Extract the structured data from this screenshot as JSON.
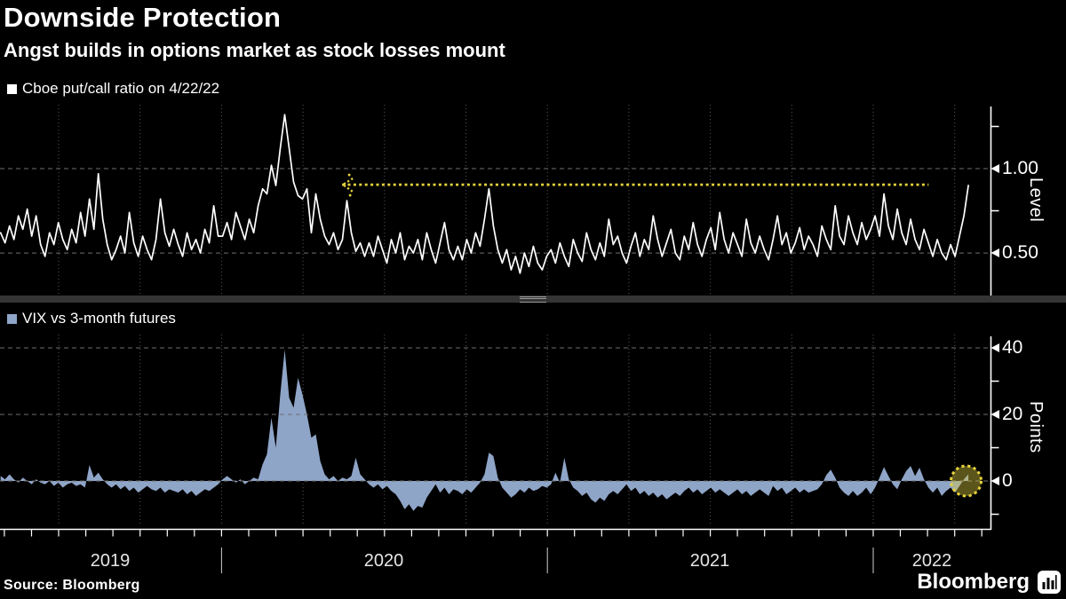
{
  "header": {
    "title": "Downside Protection",
    "subtitle": "Angst builds in options market as stock losses mount"
  },
  "footer": {
    "source": "Source: Bloomberg",
    "logo_text": "Bloomberg"
  },
  "colors": {
    "background": "#000000",
    "text": "#ffffff",
    "line": "#ffffff",
    "area": "#8FA5C8",
    "accent_yellow": "#E5D33B",
    "grid_dash": "#6e6e6e",
    "grid_dot": "#565656",
    "divider_bar": "#343434",
    "divider_handle": "#9a9a9a",
    "axis": "#ffffff",
    "year_separator": "#d0d0d0"
  },
  "x_axis": {
    "year_labels": [
      "2019",
      "2020",
      "2021",
      "2022"
    ],
    "year_boundaries": [
      2020,
      2021,
      2022
    ],
    "gridline_interval": "quarter",
    "tick_interval": "month"
  },
  "chart_data": [
    {
      "type": "line",
      "panel": "top",
      "legend": "Cboe put/call ratio on 4/22/22",
      "ylabel": "Level",
      "yticks": [
        {
          "label": "1.00",
          "value": 1.0
        },
        {
          "label": "0.50",
          "value": 0.5
        }
      ],
      "yticks_unlabeled": [
        1.25,
        0.75
      ],
      "ylim": [
        0.253,
        1.379
      ],
      "xlim": [
        2019.32,
        2022.36
      ],
      "x_start": 2019.322,
      "x_end": 2022.292,
      "x_spacing": "uniform",
      "annotation": {
        "kind": "dotted-horizontal-line-with-arrow",
        "level": 0.905,
        "x_from": 2020.37,
        "x_to": 2022.17
      },
      "y": [
        0.62,
        0.56,
        0.66,
        0.58,
        0.72,
        0.64,
        0.76,
        0.6,
        0.72,
        0.55,
        0.48,
        0.62,
        0.55,
        0.68,
        0.58,
        0.52,
        0.64,
        0.56,
        0.74,
        0.6,
        0.82,
        0.64,
        0.97,
        0.7,
        0.55,
        0.46,
        0.52,
        0.6,
        0.5,
        0.74,
        0.56,
        0.48,
        0.6,
        0.52,
        0.46,
        0.58,
        0.82,
        0.62,
        0.54,
        0.64,
        0.55,
        0.48,
        0.62,
        0.52,
        0.58,
        0.5,
        0.64,
        0.56,
        0.78,
        0.6,
        0.6,
        0.68,
        0.58,
        0.74,
        0.66,
        0.58,
        0.7,
        0.62,
        0.78,
        0.88,
        0.85,
        1.02,
        0.9,
        1.12,
        1.32,
        1.12,
        0.92,
        0.84,
        0.82,
        0.88,
        0.62,
        0.85,
        0.7,
        0.6,
        0.55,
        0.62,
        0.52,
        0.58,
        0.81,
        0.62,
        0.51,
        0.56,
        0.48,
        0.56,
        0.48,
        0.6,
        0.52,
        0.44,
        0.58,
        0.5,
        0.62,
        0.46,
        0.54,
        0.5,
        0.58,
        0.46,
        0.62,
        0.52,
        0.44,
        0.56,
        0.68,
        0.52,
        0.46,
        0.54,
        0.46,
        0.58,
        0.5,
        0.62,
        0.54,
        0.7,
        0.88,
        0.66,
        0.52,
        0.44,
        0.52,
        0.4,
        0.48,
        0.38,
        0.5,
        0.42,
        0.54,
        0.44,
        0.4,
        0.48,
        0.52,
        0.44,
        0.56,
        0.48,
        0.42,
        0.58,
        0.5,
        0.45,
        0.62,
        0.52,
        0.46,
        0.56,
        0.48,
        0.7,
        0.55,
        0.6,
        0.5,
        0.44,
        0.54,
        0.62,
        0.48,
        0.58,
        0.52,
        0.72,
        0.58,
        0.48,
        0.56,
        0.64,
        0.5,
        0.46,
        0.6,
        0.52,
        0.68,
        0.55,
        0.48,
        0.58,
        0.65,
        0.52,
        0.74,
        0.58,
        0.5,
        0.62,
        0.55,
        0.48,
        0.7,
        0.56,
        0.5,
        0.6,
        0.52,
        0.46,
        0.58,
        0.72,
        0.55,
        0.62,
        0.5,
        0.56,
        0.65,
        0.52,
        0.6,
        0.55,
        0.48,
        0.66,
        0.58,
        0.52,
        0.78,
        0.6,
        0.55,
        0.72,
        0.62,
        0.55,
        0.68,
        0.58,
        0.64,
        0.72,
        0.6,
        0.85,
        0.66,
        0.58,
        0.76,
        0.62,
        0.55,
        0.7,
        0.58,
        0.52,
        0.64,
        0.56,
        0.48,
        0.58,
        0.5,
        0.46,
        0.55,
        0.48,
        0.6,
        0.72,
        0.9
      ]
    },
    {
      "type": "area",
      "panel": "bottom",
      "legend": "VIX vs 3-month futures",
      "ylabel": "Points",
      "yticks": [
        {
          "label": "40",
          "value": 40
        },
        {
          "label": "20",
          "value": 20
        },
        {
          "label": "0",
          "value": 0
        }
      ],
      "yticks_unlabeled": [
        30,
        10,
        -10
      ],
      "ylim": [
        -13.6,
        44
      ],
      "xlim": [
        2019.32,
        2022.36
      ],
      "x_start": 2019.322,
      "x_end": 2022.292,
      "x_spacing": "uniform",
      "baseline": 0,
      "annotation": {
        "kind": "dotted-circle-highlight",
        "x": 2022.285,
        "y": 0,
        "radius_px": 17
      },
      "y": [
        1.5,
        0.5,
        2.0,
        0.5,
        -0.5,
        1.0,
        0.0,
        -1.0,
        0.5,
        -0.5,
        -1.0,
        0.0,
        -1.5,
        -0.5,
        -2.0,
        -1.0,
        -0.5,
        -1.5,
        -1.0,
        -2.0,
        4.8,
        1.0,
        2.5,
        0.5,
        -1.0,
        -2.0,
        -1.0,
        -2.5,
        -1.5,
        -3.0,
        -2.0,
        -3.5,
        -2.5,
        -1.5,
        -2.5,
        -3.0,
        -2.0,
        -3.5,
        -2.5,
        -3.0,
        -3.5,
        -2.5,
        -4.0,
        -3.0,
        -4.5,
        -3.5,
        -2.5,
        -3.0,
        -2.0,
        -1.0,
        0.5,
        1.5,
        0.5,
        -0.5,
        0.5,
        -1.0,
        0.0,
        1.0,
        0.5,
        5.0,
        8.0,
        19.0,
        10.0,
        26.0,
        39.5,
        25.0,
        22.0,
        31.0,
        26.0,
        20.0,
        13.0,
        14.0,
        6.0,
        2.0,
        0.5,
        1.5,
        0.0,
        1.0,
        0.5,
        1.5,
        7.0,
        2.0,
        0.5,
        -1.0,
        -2.0,
        -1.0,
        -2.5,
        -1.5,
        -3.0,
        -4.0,
        -6.0,
        -8.5,
        -7.0,
        -9.0,
        -7.5,
        -8.0,
        -5.0,
        -3.0,
        -1.0,
        -3.5,
        -2.0,
        -4.0,
        -2.5,
        -3.0,
        -4.0,
        -2.5,
        -3.5,
        -2.0,
        -0.5,
        2.0,
        8.5,
        7.5,
        1.0,
        -2.0,
        -3.5,
        -5.0,
        -4.0,
        -2.5,
        -3.5,
        -2.0,
        -3.0,
        -2.5,
        -1.5,
        -2.0,
        -1.0,
        2.5,
        -0.5,
        7.0,
        0.5,
        -2.0,
        -3.0,
        -4.5,
        -3.5,
        -5.5,
        -6.5,
        -5.0,
        -6.0,
        -4.0,
        -3.0,
        -4.0,
        -2.5,
        -1.0,
        -3.0,
        -2.0,
        -4.0,
        -3.0,
        -4.5,
        -3.5,
        -5.0,
        -4.0,
        -5.5,
        -4.5,
        -3.5,
        -4.5,
        -3.0,
        -2.0,
        -3.5,
        -2.5,
        -4.0,
        -3.0,
        -2.0,
        -3.5,
        -2.5,
        -3.5,
        -4.5,
        -3.5,
        -2.5,
        -4.0,
        -3.0,
        -4.5,
        -3.5,
        -2.5,
        -3.5,
        -4.5,
        -1.5,
        -3.0,
        -2.0,
        -4.0,
        -3.0,
        -2.0,
        -3.5,
        -2.5,
        -3.5,
        -3.0,
        -2.5,
        -1.0,
        1.8,
        3.4,
        1.0,
        -2.0,
        -3.5,
        -4.5,
        -3.0,
        -4.5,
        -3.5,
        -2.0,
        -4.0,
        -2.0,
        1.0,
        4.2,
        1.5,
        -1.0,
        -2.5,
        0.5,
        3.0,
        4.5,
        1.5,
        4.0,
        0.5,
        -2.0,
        -3.5,
        -2.0,
        -4.5,
        -3.0,
        -2.0,
        -3.5,
        -1.5,
        0.5,
        2.0
      ]
    }
  ]
}
